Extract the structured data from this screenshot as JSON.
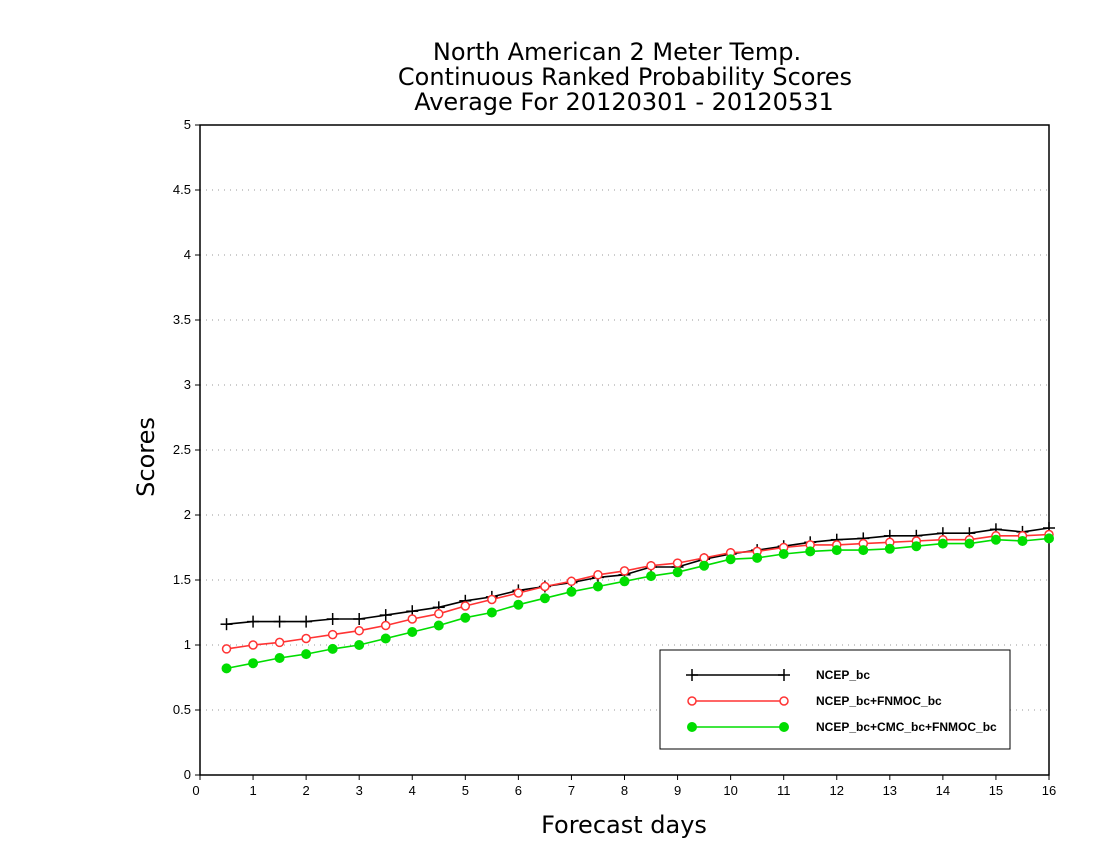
{
  "chart_data": {
    "type": "line",
    "title": [
      "North American 2 Meter Temp.",
      "Continuous Ranked Probability Scores",
      "Average For 20120301 - 20120531"
    ],
    "xlabel": "Forecast days",
    "ylabel": "Scores",
    "xlim": [
      0,
      16
    ],
    "ylim": [
      0,
      5
    ],
    "x_ticks": [
      "0",
      "1",
      "2",
      "3",
      "4",
      "5",
      "6",
      "7",
      "8",
      "9",
      "10",
      "11",
      "12",
      "13",
      "14",
      "15",
      "16"
    ],
    "y_ticks": [
      "0",
      "0.5",
      "1",
      "1.5",
      "2",
      "2.5",
      "3",
      "3.5",
      "4",
      "4.5",
      "5"
    ],
    "grid": "horizontal dotted",
    "legend_position": "bottom-right",
    "x": [
      0.5,
      1,
      1.5,
      2,
      2.5,
      3,
      3.5,
      4,
      4.5,
      5,
      5.5,
      6,
      6.5,
      7,
      7.5,
      8,
      8.5,
      9,
      9.5,
      10,
      10.5,
      11,
      11.5,
      12,
      12.5,
      13,
      13.5,
      14,
      14.5,
      15,
      15.5,
      16
    ],
    "series": [
      {
        "name": "NCEP_bc",
        "color": "#000000",
        "marker": "plus",
        "values": [
          1.16,
          1.18,
          1.18,
          1.18,
          1.2,
          1.2,
          1.23,
          1.26,
          1.29,
          1.34,
          1.37,
          1.42,
          1.45,
          1.48,
          1.52,
          1.54,
          1.6,
          1.6,
          1.66,
          1.7,
          1.73,
          1.76,
          1.79,
          1.81,
          1.82,
          1.84,
          1.84,
          1.86,
          1.86,
          1.89,
          1.87,
          1.9
        ]
      },
      {
        "name": "NCEP_bc+FNMOC_bc",
        "color": "#ff3333",
        "marker": "open-circle",
        "values": [
          0.97,
          1.0,
          1.02,
          1.05,
          1.08,
          1.11,
          1.15,
          1.2,
          1.24,
          1.3,
          1.35,
          1.4,
          1.45,
          1.49,
          1.54,
          1.57,
          1.61,
          1.63,
          1.67,
          1.71,
          1.72,
          1.75,
          1.77,
          1.77,
          1.78,
          1.79,
          1.8,
          1.81,
          1.81,
          1.84,
          1.84,
          1.85
        ]
      },
      {
        "name": "NCEP_bc+CMC_bc+FNMOC_bc",
        "color": "#00dd00",
        "marker": "filled-circle",
        "values": [
          0.82,
          0.86,
          0.9,
          0.93,
          0.97,
          1.0,
          1.05,
          1.1,
          1.15,
          1.21,
          1.25,
          1.31,
          1.36,
          1.41,
          1.45,
          1.49,
          1.53,
          1.56,
          1.61,
          1.66,
          1.67,
          1.7,
          1.72,
          1.73,
          1.73,
          1.74,
          1.76,
          1.78,
          1.78,
          1.81,
          1.8,
          1.82
        ]
      }
    ]
  }
}
